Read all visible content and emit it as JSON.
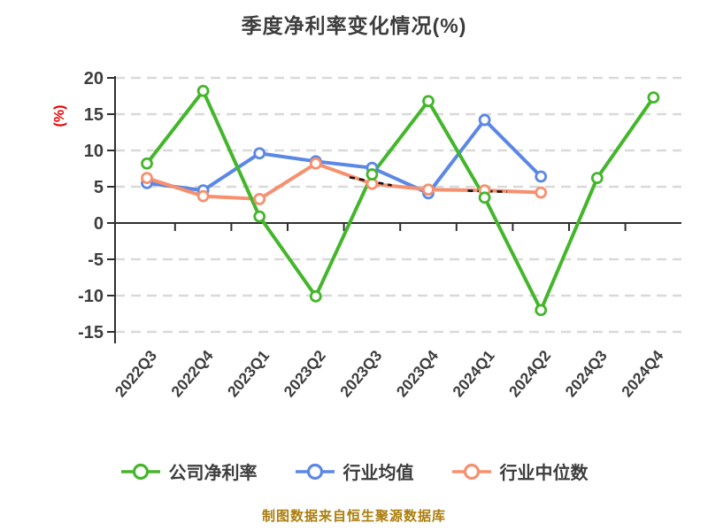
{
  "header": {
    "title": "季度净利率变化情况(%)"
  },
  "footer": {
    "text": "制图数据来自恒生聚源数据库",
    "color": "#aa7d0c"
  },
  "colors": {
    "title_text": "#3d3d3d",
    "axis_line": "#2f2f2f",
    "tick_label": "#3d3d3d",
    "gridline": "#d9d9d9",
    "y_axis_unit_label": "#e60000",
    "annotation_dash": "#111111"
  },
  "chart_data": {
    "type": "line",
    "title": "季度净利率变化情况(%)",
    "ylabel": "(%)",
    "ylim": [
      -15,
      20
    ],
    "y_ticks": [
      20,
      15,
      10,
      5,
      0,
      -5,
      -10,
      -15
    ],
    "grid": "horizontal-dashed",
    "legend_position": "bottom",
    "categories": [
      "2022Q3",
      "2022Q4",
      "2023Q1",
      "2023Q2",
      "2023Q3",
      "2023Q4",
      "2024Q1",
      "2024Q2",
      "2024Q3",
      "2024Q4"
    ],
    "series": [
      {
        "name": "行业均值",
        "key": "industry-mean",
        "color": "#5b87e5",
        "values": [
          5.5,
          4.5,
          9.6,
          8.5,
          7.6,
          4.1,
          14.2,
          6.4,
          null,
          null
        ]
      },
      {
        "name": "行业中位数",
        "key": "industry-median",
        "color": "#f6906e",
        "values": [
          6.2,
          3.7,
          3.3,
          8.2,
          5.4,
          4.6,
          4.5,
          4.2,
          null,
          null
        ]
      },
      {
        "name": "公司净利率",
        "key": "company-net-margin",
        "color": "#44b62b",
        "values": [
          8.2,
          18.2,
          0.9,
          -10.1,
          6.7,
          16.8,
          3.5,
          -12.0,
          6.2,
          17.3
        ]
      }
    ],
    "legend_order": [
      "公司净利率",
      "行业均值",
      "行业中位数"
    ],
    "annotation_dashes": [
      {
        "x1": 3.6,
        "y1": 6.3,
        "x2": 4.35,
        "y2": 5.2
      },
      {
        "x1": 5.7,
        "y1": 4.45,
        "x2": 6.4,
        "y2": 4.3
      }
    ]
  }
}
